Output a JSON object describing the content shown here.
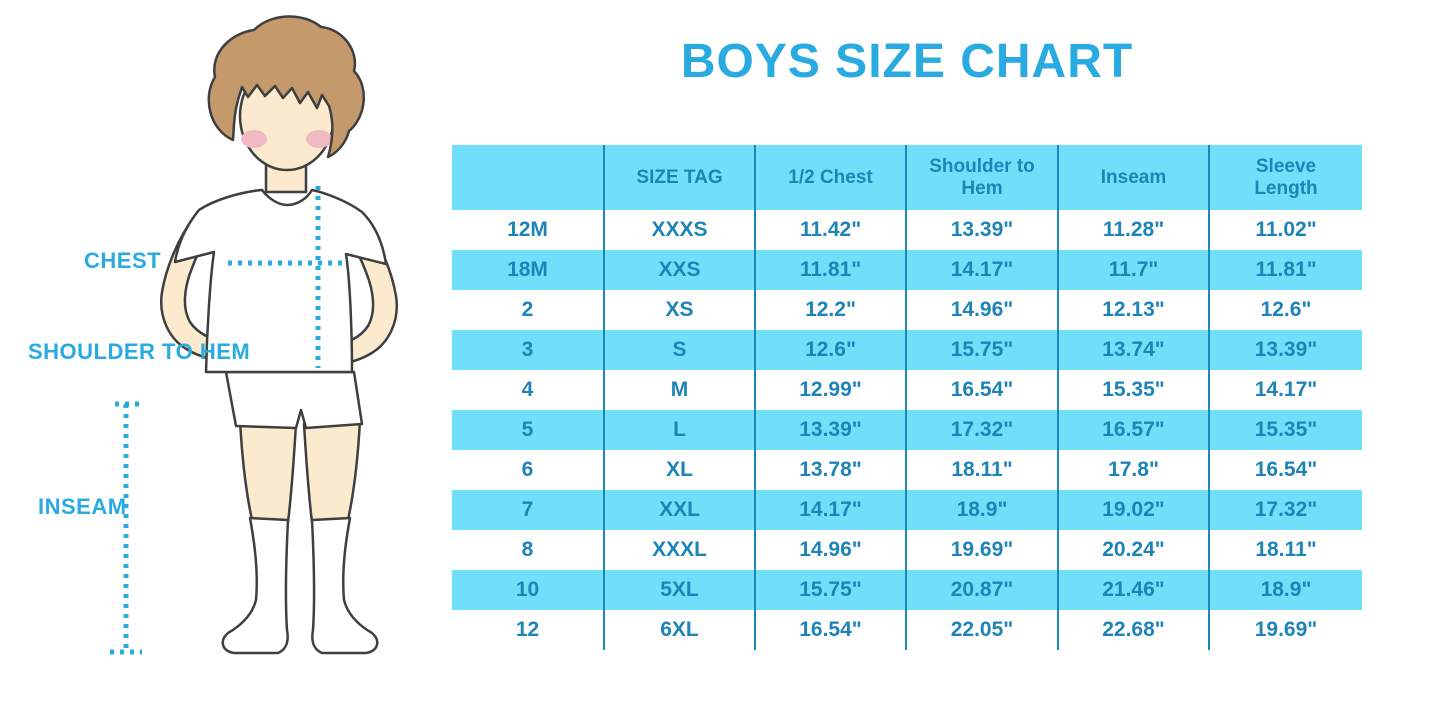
{
  "title": "BOYS SIZE CHART",
  "figure": {
    "illustration": "boy-with-measurement-lines",
    "labels": {
      "chest": "CHEST",
      "shoulder_to_hem": "SHOULDER TO HEM",
      "inseam": "INSEAM"
    }
  },
  "colors": {
    "accent_blue": "#29ABE2",
    "table_text_blue": "#1E84B5",
    "row_fill_blue": "#70E0FA",
    "divider_blue": "#1D87B8",
    "hair_brown": "#C49A6C",
    "skin": "#FBEACD",
    "blush_pink": "#F0B9C3"
  },
  "chart_data": {
    "type": "table",
    "title": "BOYS SIZE CHART",
    "columns": [
      "",
      "SIZE TAG",
      "1/2 Chest",
      "Shoulder to Hem",
      "Inseam",
      "Sleeve Length"
    ],
    "rows": [
      [
        "12M",
        "XXXS",
        "11.42\"",
        "13.39\"",
        "11.28\"",
        "11.02\""
      ],
      [
        "18M",
        "XXS",
        "11.81\"",
        "14.17\"",
        "11.7\"",
        "11.81\""
      ],
      [
        "2",
        "XS",
        "12.2\"",
        "14.96\"",
        "12.13\"",
        "12.6\""
      ],
      [
        "3",
        "S",
        "12.6\"",
        "15.75\"",
        "13.74\"",
        "13.39\""
      ],
      [
        "4",
        "M",
        "12.99\"",
        "16.54\"",
        "15.35\"",
        "14.17\""
      ],
      [
        "5",
        "L",
        "13.39\"",
        "17.32\"",
        "16.57\"",
        "15.35\""
      ],
      [
        "6",
        "XL",
        "13.78\"",
        "18.11\"",
        "17.8\"",
        "16.54\""
      ],
      [
        "7",
        "XXL",
        "14.17\"",
        "18.9\"",
        "19.02\"",
        "17.32\""
      ],
      [
        "8",
        "XXXL",
        "14.96\"",
        "19.69\"",
        "20.24\"",
        "18.11\""
      ],
      [
        "10",
        "5XL",
        "15.75\"",
        "20.87\"",
        "21.46\"",
        "18.9\""
      ],
      [
        "12",
        "6XL",
        "16.54\"",
        "22.05\"",
        "22.68\"",
        "19.69\""
      ]
    ],
    "layout": {
      "header_fill": "light-blue",
      "alternating_rows": true,
      "column_dividers": true
    }
  }
}
